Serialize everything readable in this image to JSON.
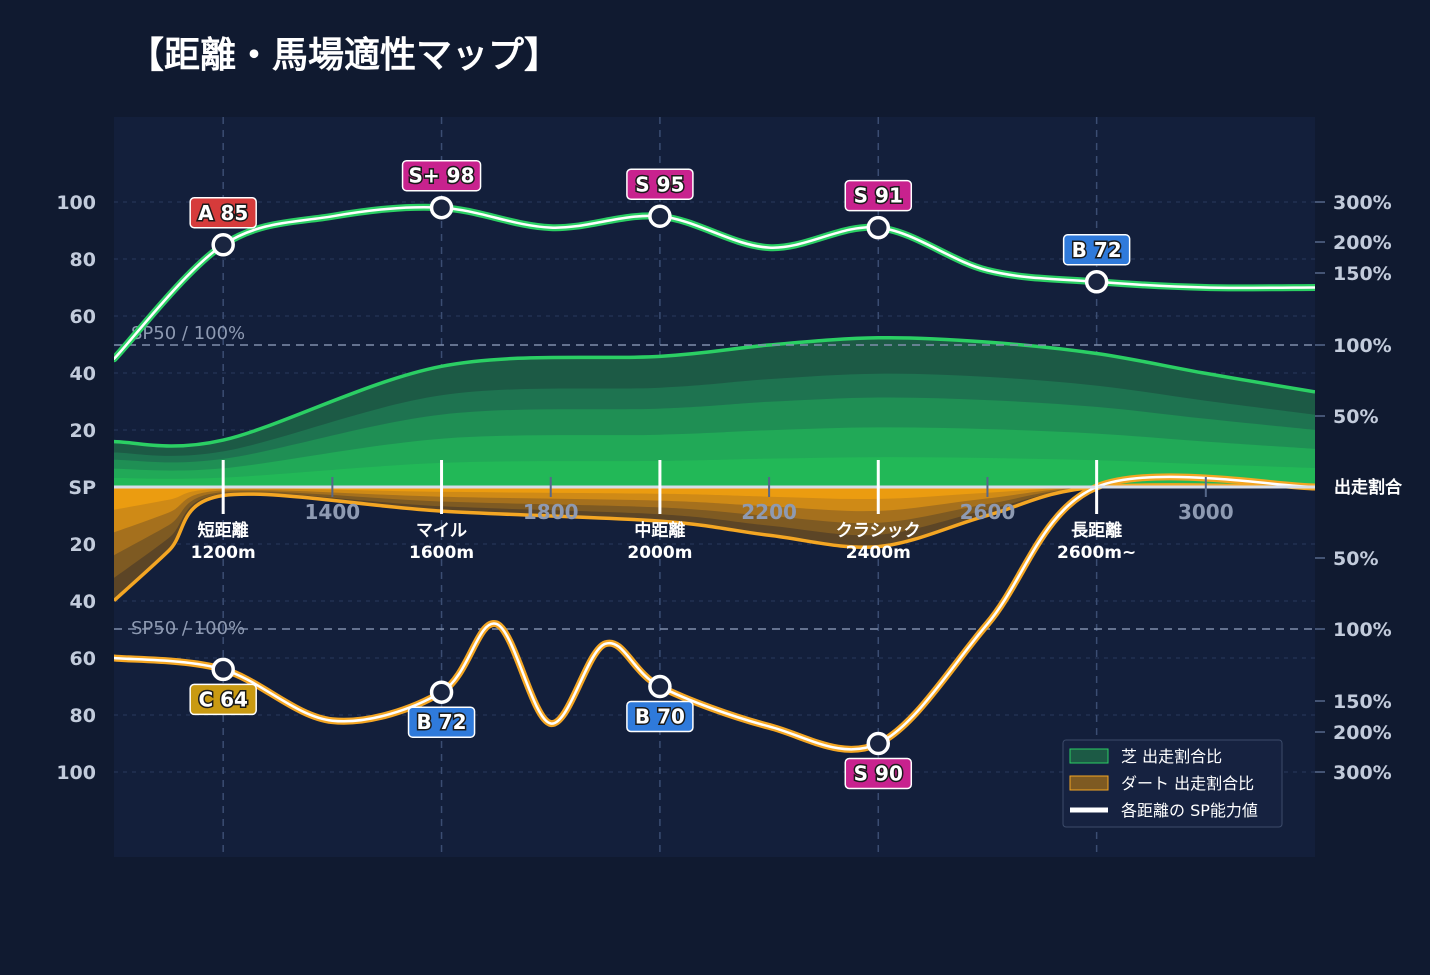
{
  "title": "【距離・馬場適性マップ】",
  "colors": {
    "background": "#101a30",
    "plot_bg": "#131f3b",
    "turf": "#22b857",
    "turf_line": "#2bcf64",
    "dirt": "#f0a010",
    "dirt_line": "#f4a623",
    "sp_line": "#ffffff",
    "grade_S": "#c8228e",
    "grade_A": "#d63b3b",
    "grade_B": "#2f7adb",
    "grade_C": "#c99a12"
  },
  "axes": {
    "sp_label": "SP",
    "ratio_label": "出走割合",
    "sp_ticks_top": [
      "100",
      "80",
      "60",
      "40",
      "20"
    ],
    "sp_ticks_bottom": [
      "20",
      "40",
      "60",
      "80",
      "100"
    ],
    "ratio_ticks_top": [
      "300%",
      "200%",
      "150%",
      "100%",
      "50%"
    ],
    "ratio_ticks_bottom": [
      "50%",
      "100%",
      "150%",
      "200%",
      "300%"
    ],
    "x_ticks": [
      "1400",
      "1800",
      "2200",
      "2600",
      "3000"
    ],
    "reference_label": "SP50 / 100%"
  },
  "chart_data": {
    "type": "area",
    "x_unit": "m",
    "x_range": [
      1000,
      3200
    ],
    "sp_range": [
      0,
      100
    ],
    "ratio_range_pct": [
      0,
      300
    ],
    "zones": [
      {
        "name": "短距離",
        "distance": "1200m",
        "x": 1200
      },
      {
        "name": "マイル",
        "distance": "1600m",
        "x": 1600
      },
      {
        "name": "中距離",
        "distance": "2000m",
        "x": 2000
      },
      {
        "name": "クラシック",
        "distance": "2400m",
        "x": 2400
      },
      {
        "name": "長距離",
        "distance": "2600m~",
        "x": 2800
      }
    ],
    "turf": {
      "sp_points": [
        {
          "x": 1200,
          "sp": 85,
          "grade": "A",
          "label": "A 85"
        },
        {
          "x": 1600,
          "sp": 98,
          "grade": "S+",
          "label": "S+ 98"
        },
        {
          "x": 2000,
          "sp": 95,
          "grade": "S",
          "label": "S 95"
        },
        {
          "x": 2400,
          "sp": 91,
          "grade": "S",
          "label": "S 91"
        },
        {
          "x": 2800,
          "sp": 72,
          "grade": "B",
          "label": "B 72"
        }
      ],
      "sp_curve": [
        [
          1000,
          45
        ],
        [
          1200,
          85
        ],
        [
          1400,
          95
        ],
        [
          1600,
          98
        ],
        [
          1800,
          91
        ],
        [
          2000,
          95
        ],
        [
          2200,
          84
        ],
        [
          2400,
          91
        ],
        [
          2600,
          76
        ],
        [
          2800,
          72
        ],
        [
          3000,
          70
        ],
        [
          3200,
          70
        ]
      ],
      "ratio_curve": [
        [
          1000,
          32
        ],
        [
          1200,
          33
        ],
        [
          1600,
          85
        ],
        [
          2000,
          92
        ],
        [
          2200,
          100
        ],
        [
          2400,
          105
        ],
        [
          2600,
          102
        ],
        [
          2800,
          94
        ],
        [
          3000,
          80
        ],
        [
          3200,
          67
        ]
      ]
    },
    "dirt": {
      "sp_points": [
        {
          "x": 1200,
          "sp": 64,
          "grade": "C",
          "label": "C 64"
        },
        {
          "x": 1600,
          "sp": 72,
          "grade": "B",
          "label": "B 72"
        },
        {
          "x": 2000,
          "sp": 70,
          "grade": "B",
          "label": "B 70"
        },
        {
          "x": 2400,
          "sp": 90,
          "grade": "S",
          "label": "S 90"
        }
      ],
      "sp_curve": [
        [
          1000,
          60
        ],
        [
          1200,
          64
        ],
        [
          1400,
          82
        ],
        [
          1600,
          72
        ],
        [
          1700,
          48
        ],
        [
          1800,
          83
        ],
        [
          1900,
          55
        ],
        [
          2000,
          70
        ],
        [
          2200,
          84
        ],
        [
          2400,
          90
        ],
        [
          2600,
          48
        ],
        [
          2800,
          0
        ],
        [
          3200,
          0
        ]
      ],
      "ratio_curve": [
        [
          1000,
          80
        ],
        [
          1100,
          45
        ],
        [
          1200,
          6
        ],
        [
          1600,
          17
        ],
        [
          2000,
          24
        ],
        [
          2200,
          34
        ],
        [
          2400,
          42
        ],
        [
          2600,
          20
        ],
        [
          2800,
          0
        ],
        [
          3200,
          0
        ]
      ]
    }
  },
  "legend": {
    "items": [
      {
        "label": "芝 出走割合比",
        "swatch": "turf"
      },
      {
        "label": "ダート 出走割合比",
        "swatch": "dirt"
      },
      {
        "label": "各距離の SP能力値",
        "swatch": "line"
      }
    ]
  }
}
